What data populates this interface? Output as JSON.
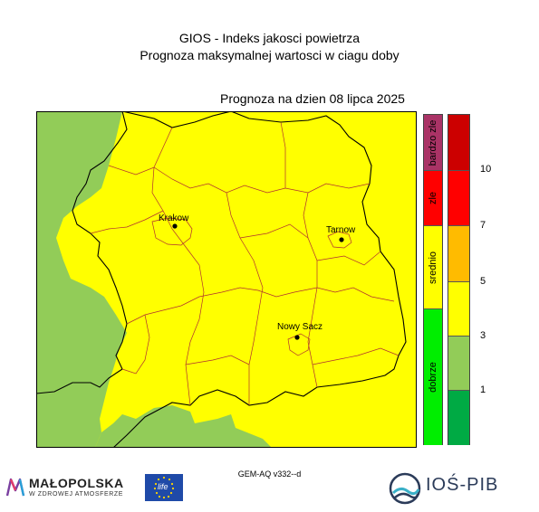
{
  "header": {
    "title": "GIOS - Indeks jakosci powietrza",
    "subtitle": "Prognoza maksymalnej wartosci w ciagu doby",
    "forecast_date": "Prognoza na dzien  08 lipca 2025"
  },
  "map": {
    "cities": [
      {
        "name": "Krakow"
      },
      {
        "name": "Tarnow"
      },
      {
        "name": "Nowy Sacz"
      }
    ],
    "fill_colors": {
      "yellow": "#ffff00",
      "green": "#92cc58"
    }
  },
  "legend": {
    "categories": [
      {
        "label": "bardzo zle",
        "color": "#aa3366"
      },
      {
        "label": "zle",
        "color": "#ff0000"
      },
      {
        "label": "srednio",
        "color": "#ffff00"
      },
      {
        "label": "dobrze",
        "color": "#00ee00"
      }
    ],
    "index_colors": [
      "#cc0000",
      "#ff0000",
      "#ffbb00",
      "#ffff00",
      "#92cc58",
      "#00aa44"
    ],
    "ticks": [
      "10",
      "7",
      "5",
      "3",
      "1"
    ]
  },
  "footer": {
    "model": "GEM-AQ v332--d",
    "malopolska_logo": "MAŁOPOLSKA",
    "malopolska_tagline": "W ZDROWEJ ATMOSFERZE",
    "eu_logo": "life",
    "institute_logo": "IOŚ-PIB"
  }
}
